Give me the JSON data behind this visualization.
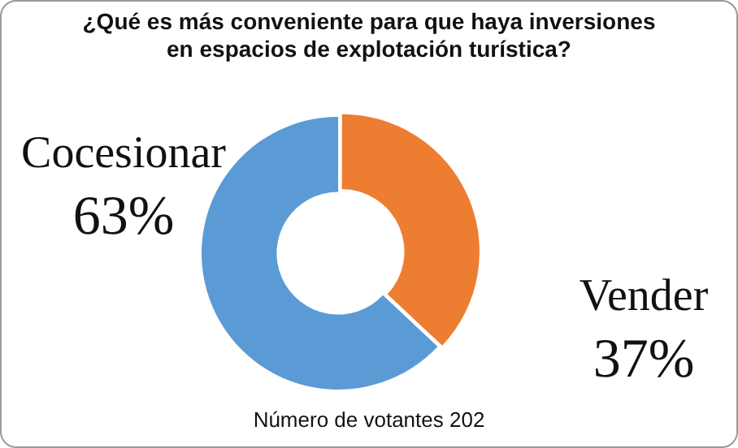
{
  "chart_data": {
    "type": "donut",
    "title": "¿Qué es más conveniente para que haya inversiones\nen espacios de explotación turística?",
    "categories": [
      "Cocesionar",
      "Vender"
    ],
    "values": [
      63,
      37
    ],
    "value_labels": [
      "63%",
      "37%"
    ],
    "colors": [
      "#5b9bd5",
      "#ed7d31"
    ],
    "legend": false,
    "annotations": [
      "Número de votantes 202"
    ]
  }
}
